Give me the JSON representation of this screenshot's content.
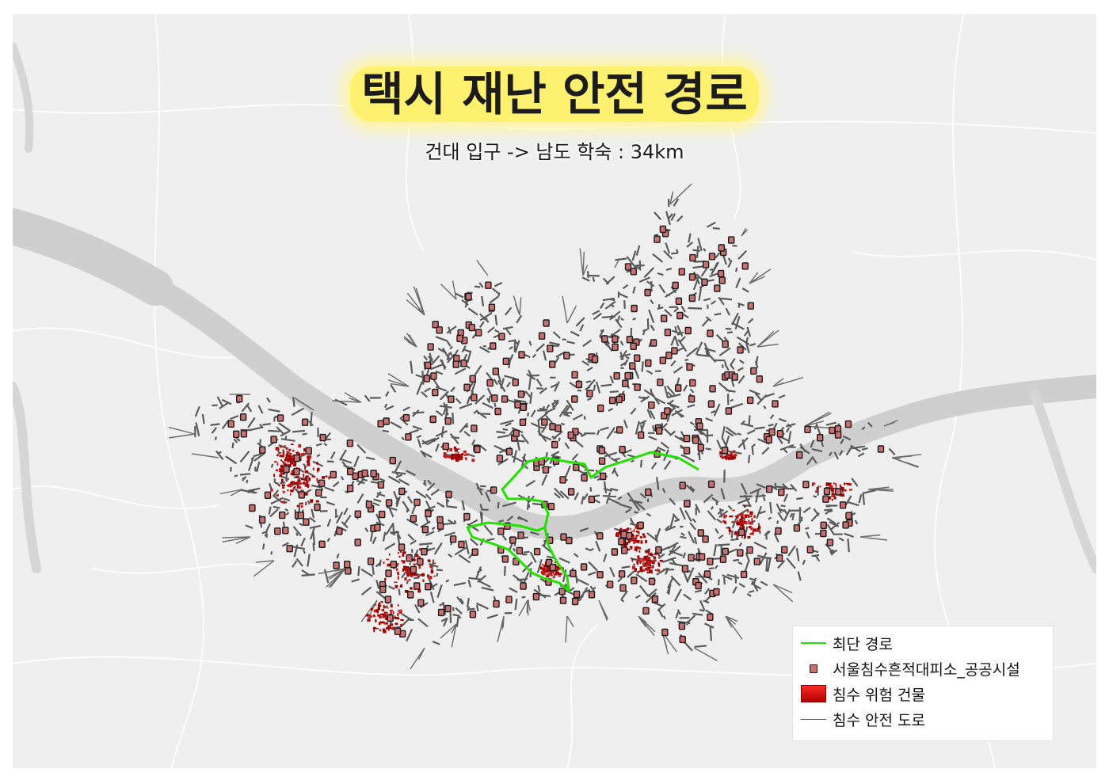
{
  "map": {
    "title": "택시 재난 안전 경로",
    "subtitle": "건대 입구 -> 남도 학숙 : 34km",
    "colors": {
      "background": "#efefef",
      "river": "#cfcfcf",
      "road_network": "#5a5a5a",
      "route": "#22e000",
      "flood_building": "#9e0000",
      "shelter_fill": "#c97070",
      "title_highlight": "#fff170"
    }
  },
  "legend": {
    "items": [
      {
        "label": "최단 경로",
        "symbol": "green-line"
      },
      {
        "label": "서울침수흔적대피소_공공시설",
        "symbol": "shelter-marker"
      },
      {
        "label": "침수 위험 건물",
        "symbol": "red-polygon"
      },
      {
        "label": "침수 안전 도로",
        "symbol": "gray-line"
      }
    ]
  }
}
